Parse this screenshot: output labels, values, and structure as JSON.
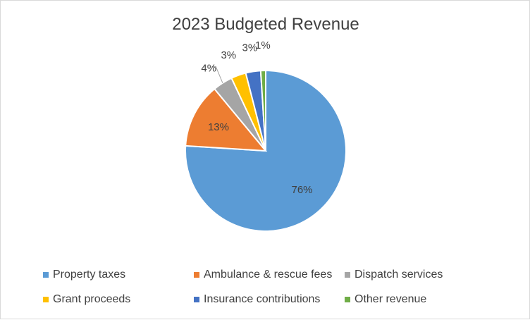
{
  "chart_data": {
    "type": "pie",
    "title": "2023 Budgeted Revenue",
    "categories": [
      "Property taxes",
      "Ambulance & rescue fees",
      "Dispatch services",
      "Grant proceeds",
      "Insurance contributions",
      "Other revenue"
    ],
    "values": [
      76,
      13,
      4,
      3,
      3,
      1
    ],
    "data_labels": [
      "76%",
      "13%",
      "4%",
      "3%",
      "3%",
      "1%"
    ],
    "colors": [
      "#5b9bd5",
      "#ed7d31",
      "#a5a5a5",
      "#ffc000",
      "#4472c4",
      "#70ad47"
    ],
    "start": "12 o'clock, clockwise",
    "legend_position": "bottom"
  }
}
